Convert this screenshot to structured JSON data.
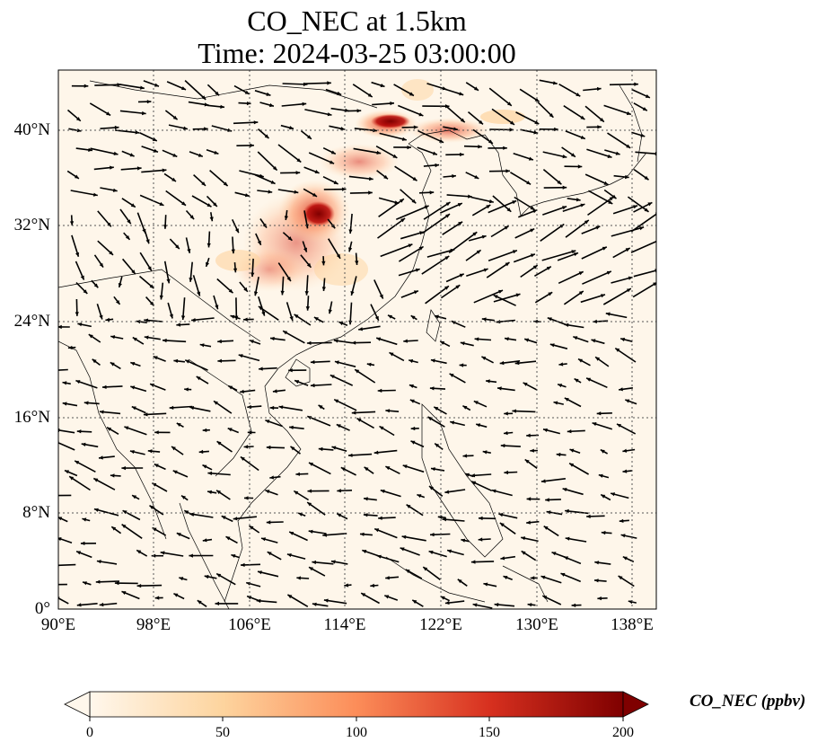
{
  "title": {
    "line1": "CO_NEC at 1.5km",
    "line2": "Time: 2024-03-25 03:00:00"
  },
  "map": {
    "lon_range": [
      90,
      140
    ],
    "lat_range": [
      0,
      45
    ],
    "lat_ticks": [
      "40°N",
      "32°N",
      "24°N",
      "16°N",
      "8°N",
      "0°"
    ],
    "lon_ticks": [
      "90°E",
      "98°E",
      "106°E",
      "114°E",
      "122°E",
      "130°E",
      "138°E"
    ],
    "gridlines": "dotted",
    "field_colormap": "OrRd",
    "vector_field": "wind arrows"
  },
  "colorbar": {
    "label": "CO_NEC (ppbv)",
    "ticks": [
      "0",
      "50",
      "100",
      "150",
      "200"
    ],
    "range": [
      0,
      200
    ],
    "extend": "both",
    "colors": [
      "#fff7ec",
      "#fdd49e",
      "#fc8d59",
      "#d7301f",
      "#7f0000"
    ]
  }
}
